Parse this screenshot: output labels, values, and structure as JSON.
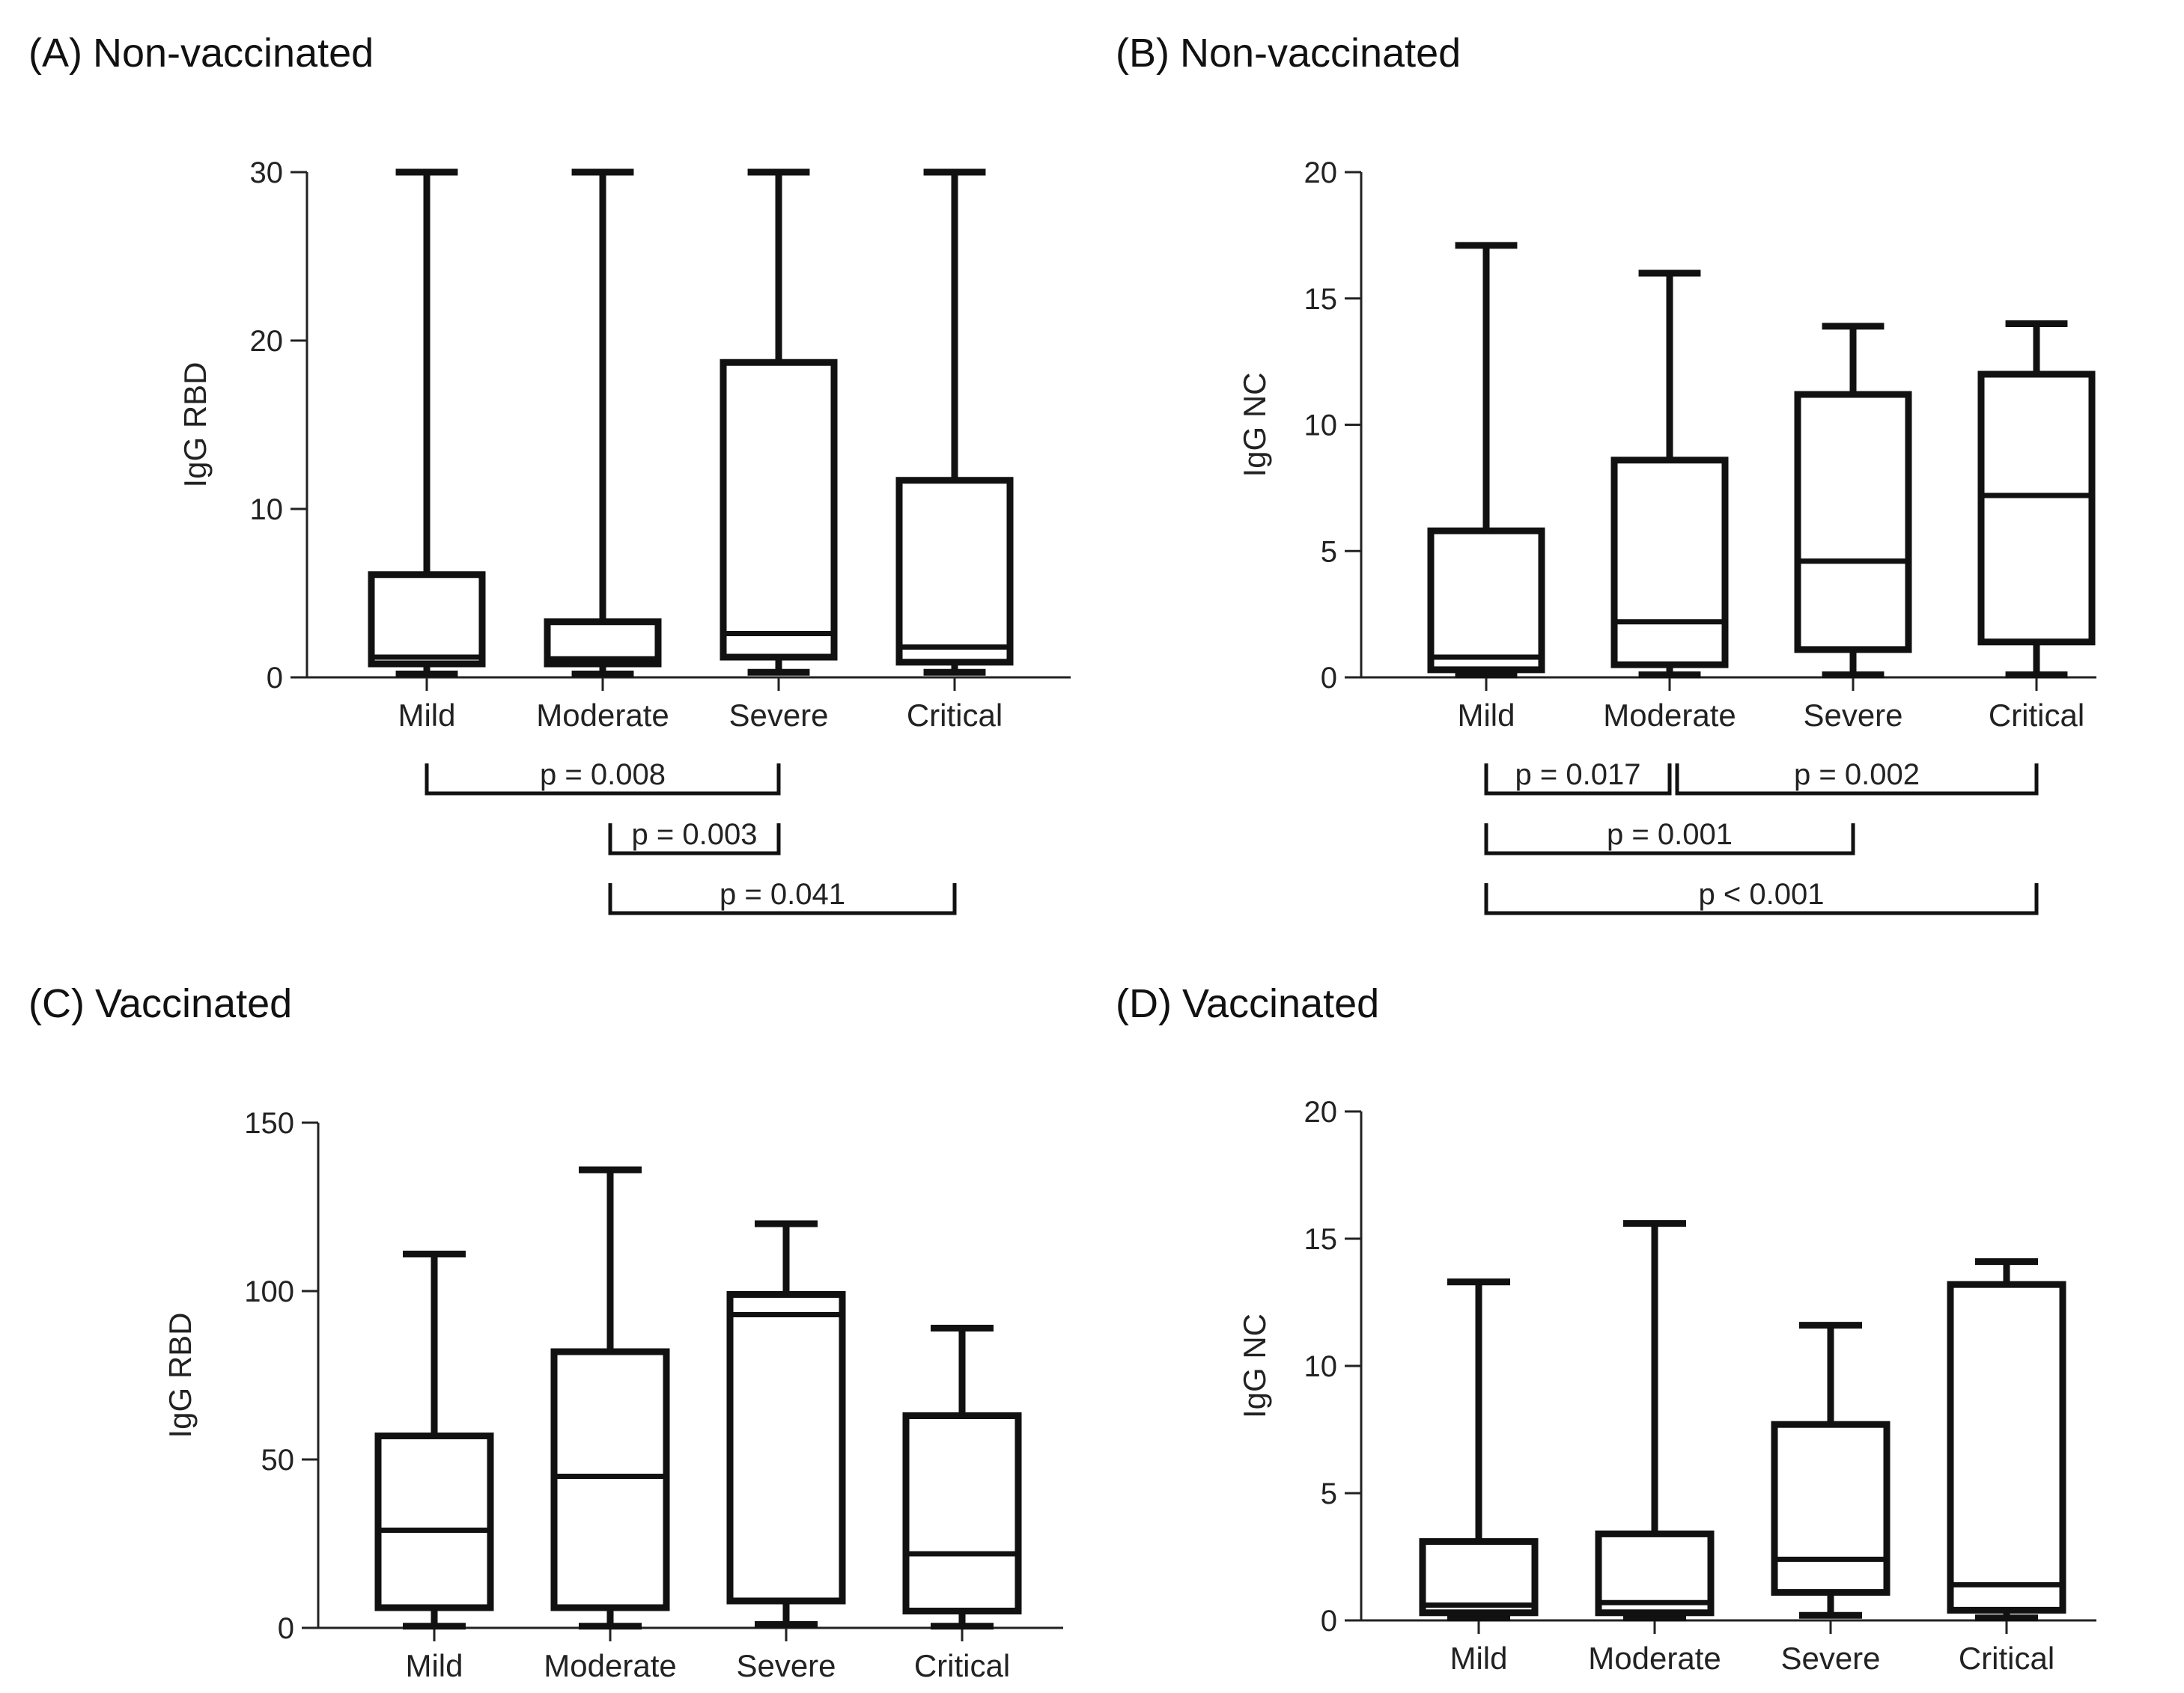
{
  "colors": {
    "ink": "#111111",
    "axis": "#222222",
    "background": "#ffffff"
  },
  "chart_data": [
    {
      "panel": "(A)",
      "title": "Non-vaccinated",
      "type": "boxplot",
      "ylabel": "IgG RBD",
      "xlabel": "",
      "ylim": [
        0,
        30
      ],
      "yticks": [
        0,
        10,
        20,
        30
      ],
      "categories": [
        "Mild",
        "Moderate",
        "Severe",
        "Critical"
      ],
      "boxes": [
        {
          "min": 0.2,
          "q1": 0.8,
          "median": 1.2,
          "q3": 6.1,
          "max": 30
        },
        {
          "min": 0.2,
          "q1": 0.8,
          "median": 1.1,
          "q3": 3.3,
          "max": 30
        },
        {
          "min": 0.3,
          "q1": 1.2,
          "median": 2.6,
          "q3": 18.7,
          "max": 30
        },
        {
          "min": 0.3,
          "q1": 0.9,
          "median": 1.8,
          "q3": 11.7,
          "max": 30
        }
      ],
      "comparisons": [
        {
          "from": 0,
          "to": 2,
          "level": 0,
          "label": "p = 0.008"
        },
        {
          "from": 1,
          "to": 2,
          "level": 1,
          "label": "p = 0.003"
        },
        {
          "from": 1,
          "to": 3,
          "level": 2,
          "label": "p = 0.041"
        }
      ]
    },
    {
      "panel": "(B)",
      "title": "Non-vaccinated",
      "type": "boxplot",
      "ylabel": "IgG NC",
      "xlabel": "",
      "ylim": [
        0,
        20
      ],
      "yticks": [
        0,
        5,
        10,
        15,
        20
      ],
      "categories": [
        "Mild",
        "Moderate",
        "Severe",
        "Critical"
      ],
      "boxes": [
        {
          "min": 0.1,
          "q1": 0.3,
          "median": 0.8,
          "q3": 5.8,
          "max": 17.1
        },
        {
          "min": 0.1,
          "q1": 0.5,
          "median": 2.2,
          "q3": 8.6,
          "max": 16.0
        },
        {
          "min": 0.1,
          "q1": 1.1,
          "median": 4.6,
          "q3": 11.2,
          "max": 13.9
        },
        {
          "min": 0.1,
          "q1": 1.4,
          "median": 7.2,
          "q3": 12.0,
          "max": 14.0
        }
      ],
      "comparisons": [
        {
          "from": 0,
          "to": 1,
          "level": 0,
          "label": "p = 0.017"
        },
        {
          "from": 1,
          "to": 3,
          "level": 0,
          "label": "p = 0.002"
        },
        {
          "from": 0,
          "to": 2,
          "level": 1,
          "label": "p = 0.001"
        },
        {
          "from": 0,
          "to": 3,
          "level": 2,
          "label": "p < 0.001"
        }
      ]
    },
    {
      "panel": "(C)",
      "title": "Vaccinated",
      "type": "boxplot",
      "ylabel": "IgG RBD",
      "xlabel": "",
      "ylim": [
        0,
        150
      ],
      "yticks": [
        0,
        50,
        100,
        150
      ],
      "categories": [
        "Mild",
        "Moderate",
        "Severe",
        "Critical"
      ],
      "boxes": [
        {
          "min": 0.5,
          "q1": 6,
          "median": 29,
          "q3": 57,
          "max": 111
        },
        {
          "min": 0.5,
          "q1": 6,
          "median": 45,
          "q3": 82,
          "max": 136
        },
        {
          "min": 1,
          "q1": 8,
          "median": 93,
          "q3": 99,
          "max": 120
        },
        {
          "min": 0.5,
          "q1": 5,
          "median": 22,
          "q3": 63,
          "max": 89
        }
      ],
      "comparisons": []
    },
    {
      "panel": "(D)",
      "title": "Vaccinated",
      "type": "boxplot",
      "ylabel": "IgG NC",
      "xlabel": "",
      "ylim": [
        0,
        20
      ],
      "yticks": [
        0,
        5,
        10,
        15,
        20
      ],
      "categories": [
        "Mild",
        "Moderate",
        "Severe",
        "Critical"
      ],
      "boxes": [
        {
          "min": 0.1,
          "q1": 0.3,
          "median": 0.6,
          "q3": 3.1,
          "max": 13.3
        },
        {
          "min": 0.1,
          "q1": 0.3,
          "median": 0.7,
          "q3": 3.4,
          "max": 15.6
        },
        {
          "min": 0.2,
          "q1": 1.1,
          "median": 2.4,
          "q3": 7.7,
          "max": 11.6
        },
        {
          "min": 0.1,
          "q1": 0.4,
          "median": 1.4,
          "q3": 13.2,
          "max": 14.1
        }
      ],
      "comparisons": []
    }
  ]
}
